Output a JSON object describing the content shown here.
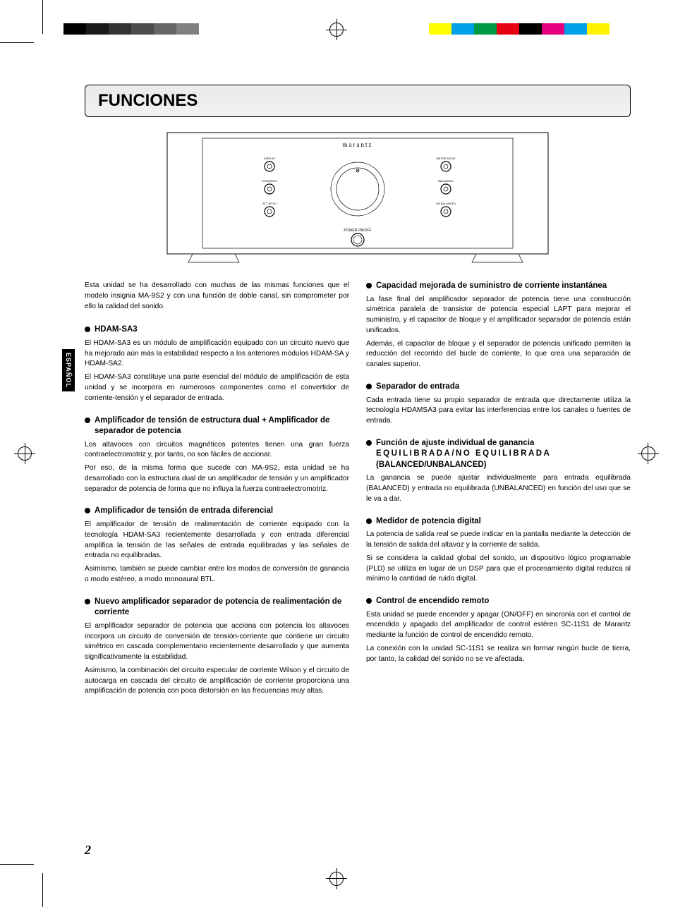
{
  "print_marks": {
    "color_swatches_left": [
      "#000000",
      "#1a1a1a",
      "#333333",
      "#4d4d4d",
      "#666666",
      "#808080"
    ],
    "color_swatches_right": [
      "#ffff00",
      "#00a0e9",
      "#009944",
      "#e60012",
      "#000000",
      "#e4007f",
      "#00a0e9",
      "#fff100"
    ]
  },
  "title": "FUNCIONES",
  "side_tab": "ESPAÑOL",
  "page_number": "2",
  "device": {
    "brand": "marantz",
    "left_labels": [
      "DISPLAY",
      "SPEAKERS",
      "ATT BOTH"
    ],
    "right_labels": [
      "METER MODE",
      "BALANCED",
      "UN BALANCED"
    ],
    "dial_top": "",
    "dial_bottom": "",
    "power_label": "POWER ON/OFF"
  },
  "intro": "Esta unidad se ha desarrollado con muchas de las mismas funciones que el modelo insignia MA-9S2 y con una función de doble canal, sin comprometer por ello la calidad del sonido.",
  "left_sections": [
    {
      "title": "HDAM-SA3",
      "paras": [
        "El HDAM-SA3 es un módulo de amplificación equipado con un circuito nuevo que ha mejorado aún más la estabilidad respecto a los anteriores módulos HDAM-SA y HDAM-SA2.",
        "El HDAM-SA3 constituye una parte esencial del módulo de amplificación de esta unidad y se incorpora en numerosos componentes como el convertidor de corriente-tensión y el separador de entrada."
      ]
    },
    {
      "title": "Amplificador de tensión de estructura dual + Amplificador de separador de potencia",
      "paras": [
        "Los altavoces con circuitos magnéticos potentes tienen una gran fuerza contraelectromotriz y, por tanto, no son fáciles de accionar.",
        "Por eso, de la misma forma que sucede con MA-9S2, esta unidad se ha desarrollado con la estructura dual de un amplificador de tensión y un amplificador separador de potencia de forma que no influya la fuerza contraelectromotriz."
      ]
    },
    {
      "title": "Amplificador de tensión de entrada diferencial",
      "paras": [
        "El amplificador de tensión de realimentación de corriente equipado con la tecnología HDAM-SA3 recientemente desarrollada y con entrada diferencial amplifica la tensión de las señales de entrada equilibradas y las señales de entrada no equilibradas.",
        "Asimismo, también se puede cambiar entre los modos de conversión de ganancia o modo estéreo, a modo monoaural BTL."
      ]
    },
    {
      "title": "Nuevo amplificador separador de potencia de realimentación de corriente",
      "paras": [
        "El amplificador separador de potencia que acciona con potencia los altavoces incorpora un circuito de conversión de tensión-corriente que contiene un circuito simétrico en cascada complementario recientemente desarrollado y que aumenta significativamente la estabilidad.",
        "Asimismo, la combinación del circuito especular de corriente Wilson y el circuito de autocarga en cascada del circuito de amplificación de corriente proporciona una amplificación de potencia con poca distorsión en las frecuencias muy altas."
      ]
    }
  ],
  "right_sections": [
    {
      "title": "Capacidad mejorada de suministro de corriente instantánea",
      "paras": [
        "La fase final del amplificador separador de potencia tiene una construcción simétrica paralela de transistor de potencia especial LAPT para mejorar el suministro, y el capacitor de bloque y el amplificador separador de potencia están unificados.",
        "Además, el capacitor de bloque y el separador de potencia unificado permiten la reducción del recorrido del bucle de corriente, lo que crea una separación de canales superior."
      ]
    },
    {
      "title": "Separador de entrada",
      "paras": [
        "Cada entrada tiene su propio separador de entrada que directamente utiliza la tecnología HDAMSA3 para evitar las interferencias entre los canales o fuentes de entrada."
      ]
    },
    {
      "title": "Función de ajuste individual de ganancia EQUILIBRADA/NO EQUILIBRADA (BALANCED/UNBALANCED)",
      "title_spread": true,
      "paras": [
        "La ganancia se puede ajustar individualmente para entrada equilibrada (BALANCED) y entrada no equilibrada (UNBALANCED) en función del uso que se le va a dar."
      ]
    },
    {
      "title": "Medidor de potencia digital",
      "paras": [
        "La potencia de salida real se puede indicar en la pantalla mediante la detección de la tensión de salida del altavoz y la corriente de salida.",
        "Si se considera la calidad global del sonido, un dispositivo lógico programable (PLD) se utiliza en lugar de un DSP para que el procesamiento digital reduzca al mínimo la cantidad de ruido digital."
      ]
    },
    {
      "title": "Control de encendido remoto",
      "paras": [
        "Esta unidad se puede encender y apagar (ON/OFF) en sincronía con el control de encendido y apagado del amplificador de control estéreo SC-11S1 de Marantz mediante la función de control de encendido remoto.",
        "La conexión con la unidad SC-11S1 se realiza sin formar ningún bucle de tierra, por tanto, la calidad del sonido no se ve afectada."
      ]
    }
  ]
}
